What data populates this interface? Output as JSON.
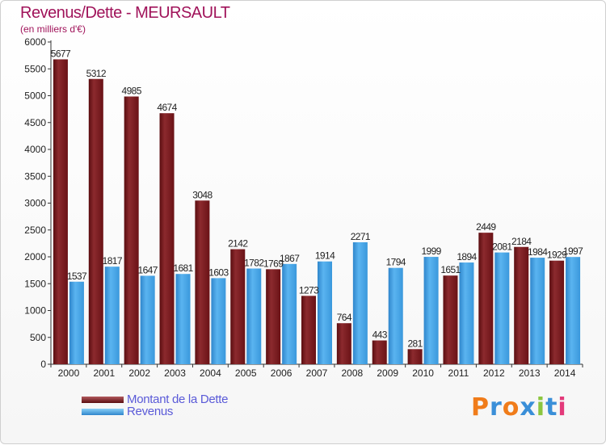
{
  "title": "Revenus/Dette - MEURSAULT",
  "subtitle": "(en milliers d'€)",
  "colors": {
    "title": "#a0135a",
    "dette": "#7a1a1e",
    "revenus": "#3f9ee0",
    "legend_text": "#5a5ad8"
  },
  "legend": {
    "dette_label": "Montant de la Dette",
    "revenus_label": "Revenus"
  },
  "logo": {
    "text": "Proxiti",
    "letters": [
      "P",
      "r",
      "o",
      "x",
      "i",
      "t",
      "i"
    ],
    "letter_colors": [
      "#f07c1a",
      "#3a8fd8",
      "#f07c1a",
      "#3a8fd8",
      "#8cc63f",
      "#3a8fd8",
      "#e33a7a"
    ]
  },
  "chart_data": {
    "type": "bar",
    "title": "Revenus/Dette - MEURSAULT",
    "subtitle": "(en milliers d'€)",
    "categories": [
      "2000",
      "2001",
      "2002",
      "2003",
      "2004",
      "2005",
      "2006",
      "2007",
      "2008",
      "2009",
      "2010",
      "2011",
      "2012",
      "2013",
      "2014"
    ],
    "series": [
      {
        "name": "Montant de la Dette",
        "values": [
          5677,
          5312,
          4985,
          4674,
          3048,
          2142,
          1769,
          1273,
          764,
          443,
          281,
          1651,
          2449,
          2184,
          1929
        ],
        "labels": [
          "5677",
          "5312",
          "4985",
          "4674",
          "3048",
          "2142",
          "1769",
          "1273",
          "764",
          "443",
          "281",
          "1651",
          "2449",
          "2184",
          "1929"
        ]
      },
      {
        "name": "Revenus",
        "values": [
          1537,
          1817,
          1647,
          1681,
          1603,
          1782,
          1867,
          1914,
          2271,
          1794,
          1999,
          1894,
          2081,
          1984,
          1997
        ],
        "labels": [
          "1537",
          "1817",
          "1647",
          "1681",
          "1603",
          "1782",
          "1867",
          "1914",
          "2271",
          "1794",
          "1999",
          "1894",
          "2081",
          "1984",
          "1997"
        ]
      }
    ],
    "ylim": [
      0,
      6000
    ],
    "yticks": [
      0,
      500,
      1000,
      1500,
      2000,
      2500,
      3000,
      3500,
      4000,
      4500,
      5000,
      5500,
      6000
    ],
    "grid": false,
    "legend_position": "bottom-left"
  }
}
